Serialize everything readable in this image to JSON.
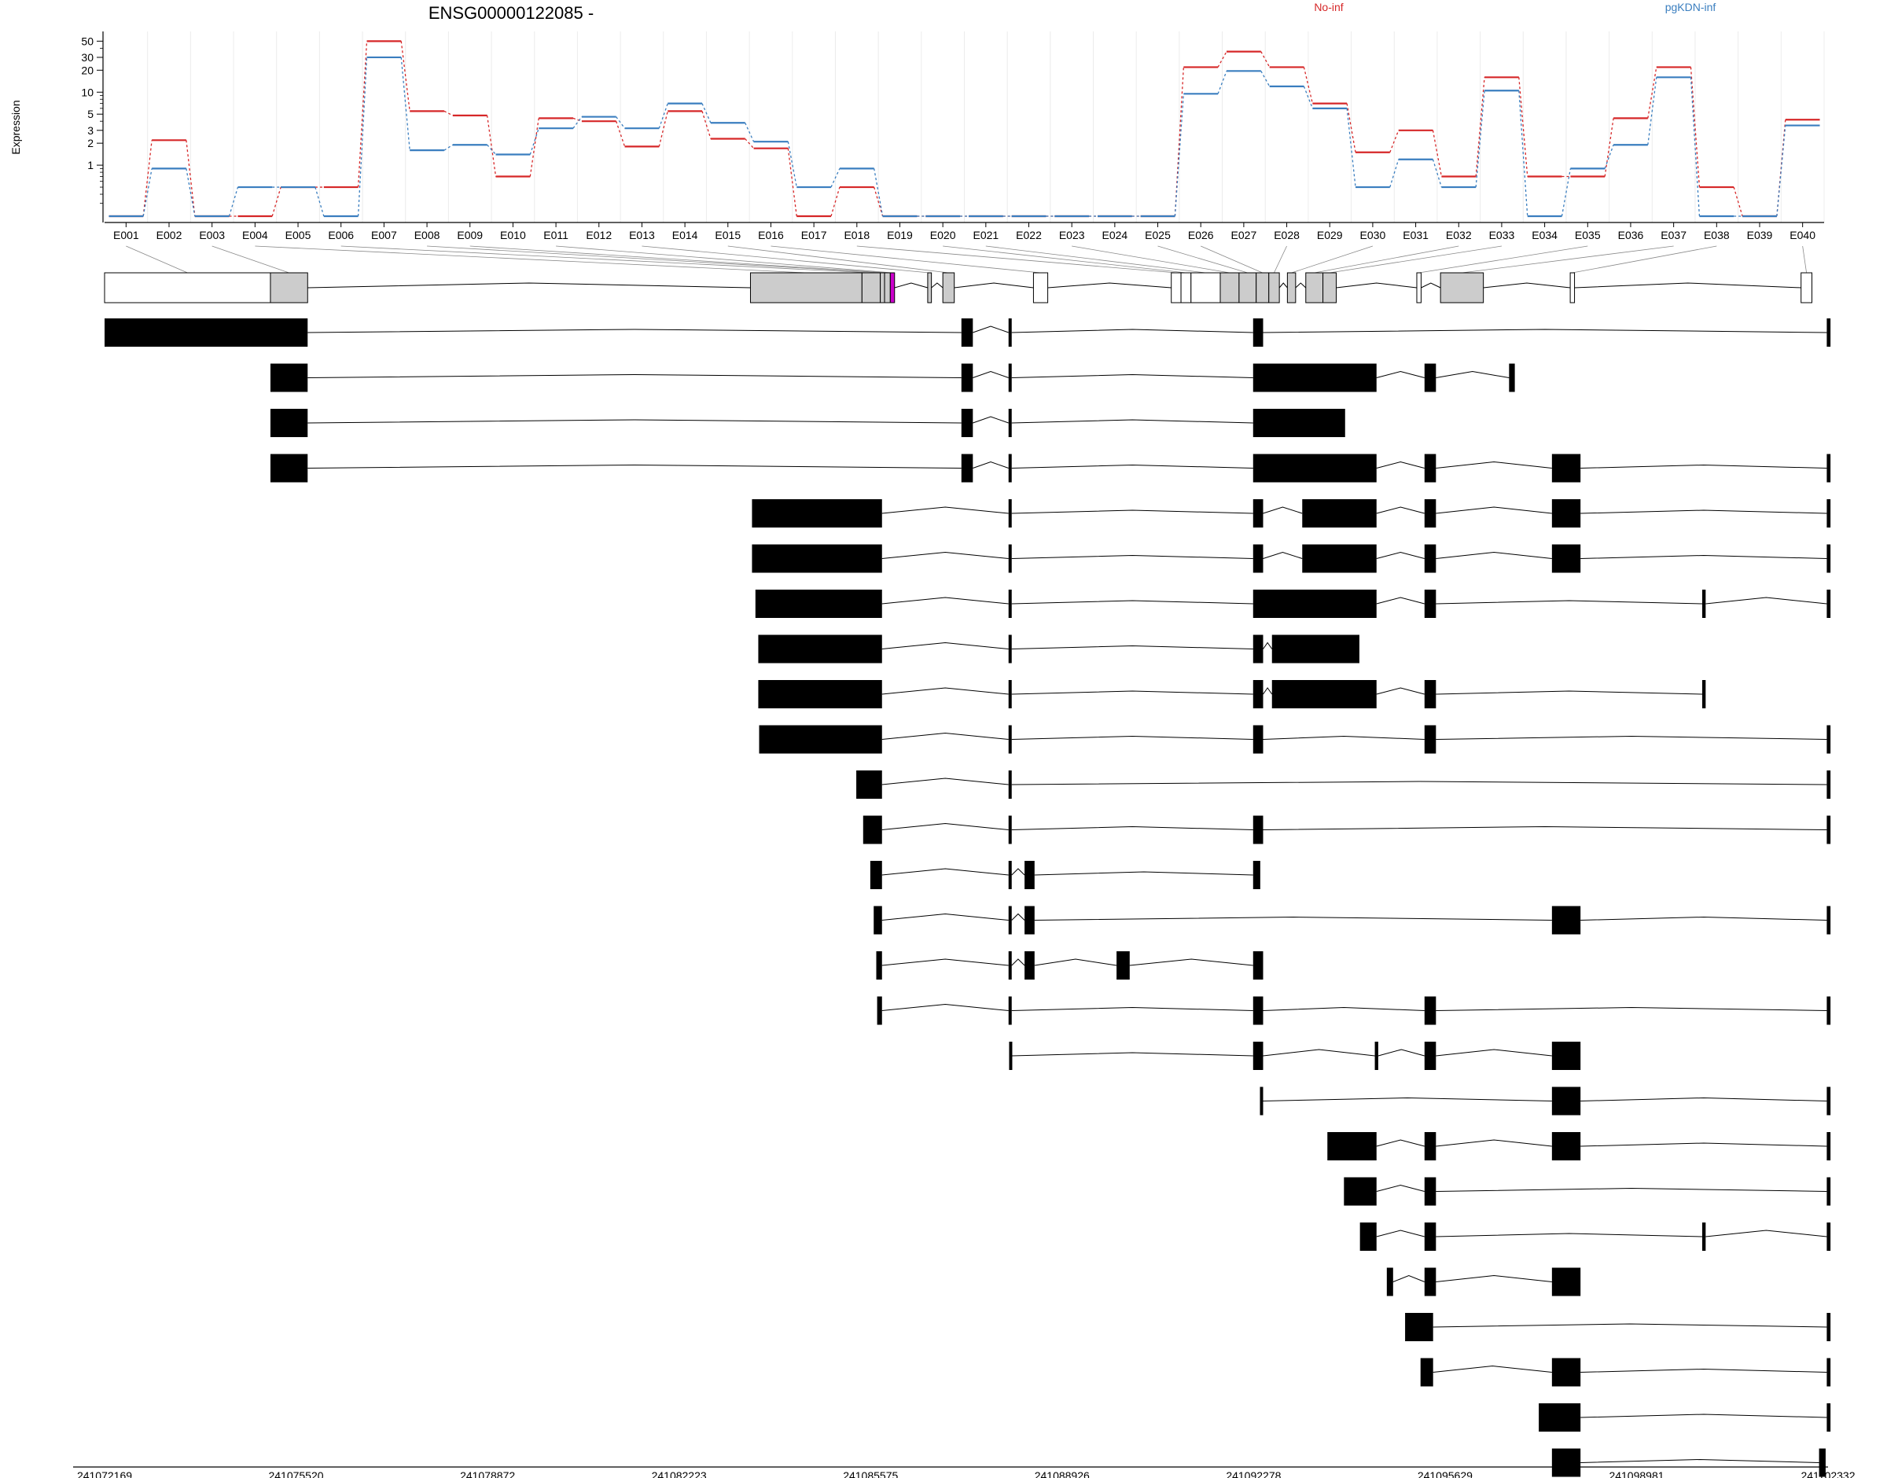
{
  "title": "ENSG00000122085 -",
  "legend": [
    {
      "name": "No-inf",
      "color": "#d62728"
    },
    {
      "name": "pgKDN-inf",
      "color": "#3a7ebf"
    }
  ],
  "colors": {
    "exon_gray": "#cccccc",
    "exon_black": "#000000",
    "highlight": "#cc00cc",
    "line": "#000000"
  },
  "chart_data": {
    "type": "line",
    "title": "ENSG00000122085 -",
    "ylabel": "Expression",
    "xlabel": "",
    "yscale": "log",
    "yticks": [
      1,
      2,
      3,
      5,
      10,
      20,
      30,
      50
    ],
    "grid": true,
    "legend_position": "top-right",
    "categories": [
      "E001",
      "E002",
      "E003",
      "E004",
      "E005",
      "E006",
      "E007",
      "E008",
      "E009",
      "E010",
      "E011",
      "E012",
      "E013",
      "E014",
      "E015",
      "E016",
      "E017",
      "E018",
      "E019",
      "E020",
      "E021",
      "E022",
      "E023",
      "E024",
      "E025",
      "E026",
      "E027",
      "E028",
      "E029",
      "E030",
      "E031",
      "E032",
      "E033",
      "E034",
      "E035",
      "E036",
      "E037",
      "E038",
      "E039",
      "E040"
    ],
    "series": [
      {
        "name": "No-inf",
        "values": [
          0.2,
          2.2,
          0.2,
          0.2,
          0.5,
          0.5,
          50,
          5.5,
          4.8,
          0.7,
          4.4,
          4.0,
          1.8,
          5.5,
          2.3,
          1.7,
          0.2,
          0.5,
          0.2,
          0.2,
          0.2,
          0.2,
          0.2,
          0.2,
          0.2,
          22,
          36,
          22,
          7,
          1.5,
          3,
          0.7,
          16,
          0.7,
          0.7,
          4.4,
          22,
          0.5,
          0.2,
          4.2
        ]
      },
      {
        "name": "pgKDN-inf",
        "values": [
          0.2,
          0.9,
          0.2,
          0.5,
          0.5,
          0.2,
          30,
          1.6,
          1.9,
          1.4,
          3.2,
          4.6,
          3.2,
          7,
          3.8,
          2.1,
          0.5,
          0.9,
          0.2,
          0.2,
          0.2,
          0.2,
          0.2,
          0.2,
          0.2,
          9.5,
          19.5,
          12,
          6,
          0.5,
          1.2,
          0.5,
          10.5,
          0.2,
          0.9,
          1.9,
          16,
          0.2,
          0.2,
          3.5
        ]
      }
    ],
    "genomic_axis": {
      "ticks": [
        "241072169",
        "241075520",
        "241078872",
        "241082223",
        "241085575",
        "241088926",
        "241092278",
        "241095629",
        "241098981",
        "241102332"
      ]
    },
    "gene_model": {
      "exons": [
        {
          "start": 241072169,
          "end": 241075072,
          "fill": "white"
        },
        {
          "start": 241075072,
          "end": 241075723,
          "fill": "gray"
        },
        {
          "start": 241083473,
          "end": 241085425,
          "fill": "gray"
        },
        {
          "start": 241085425,
          "end": 241085745,
          "fill": "gray"
        },
        {
          "start": 241085745,
          "end": 241085820,
          "fill": "gray"
        },
        {
          "start": 241085820,
          "end": 241085920,
          "fill": "gray"
        },
        {
          "start": 241085920,
          "end": 241085995,
          "fill": "highlight"
        },
        {
          "start": 241086575,
          "end": 241086640,
          "fill": "gray"
        },
        {
          "start": 241086840,
          "end": 241087040,
          "fill": "gray"
        },
        {
          "start": 241088426,
          "end": 241088676,
          "fill": "white"
        },
        {
          "start": 241090838,
          "end": 241091008,
          "fill": "white"
        },
        {
          "start": 241091008,
          "end": 241091183,
          "fill": "white"
        },
        {
          "start": 241091183,
          "end": 241091695,
          "fill": "white"
        },
        {
          "start": 241091695,
          "end": 241092024,
          "fill": "gray"
        },
        {
          "start": 241092024,
          "end": 241092324,
          "fill": "gray"
        },
        {
          "start": 241092324,
          "end": 241092545,
          "fill": "gray"
        },
        {
          "start": 241092545,
          "end": 241092729,
          "fill": "gray"
        },
        {
          "start": 241092870,
          "end": 241093014,
          "fill": "gray"
        },
        {
          "start": 241093192,
          "end": 241093492,
          "fill": "gray"
        },
        {
          "start": 241093492,
          "end": 241093725,
          "fill": "gray"
        },
        {
          "start": 241095135,
          "end": 241095210,
          "fill": "white"
        },
        {
          "start": 241095550,
          "end": 241096300,
          "fill": "gray"
        },
        {
          "start": 241097820,
          "end": 241097895,
          "fill": "white"
        },
        {
          "start": 241101860,
          "end": 241102050,
          "fill": "white"
        }
      ]
    },
    "transcripts": [
      [
        [
          241072169,
          241075723
        ],
        [
          241087165,
          241087365
        ],
        [
          241087990,
          241088045
        ],
        [
          241092270,
          241092445
        ],
        [
          241102310,
          241102375
        ]
      ],
      [
        [
          241075072,
          241075723
        ],
        [
          241087165,
          241087365
        ],
        [
          241087990,
          241088045
        ],
        [
          241092270,
          241094430
        ],
        [
          241095270,
          241095470
        ],
        [
          241096750,
          241096850
        ]
      ],
      [
        [
          241075072,
          241075723
        ],
        [
          241087165,
          241087365
        ],
        [
          241087990,
          241088045
        ],
        [
          241092270,
          241093880
        ]
      ],
      [
        [
          241075072,
          241075723
        ],
        [
          241087165,
          241087365
        ],
        [
          241087990,
          241088045
        ],
        [
          241092270,
          241094430
        ],
        [
          241095270,
          241095470
        ],
        [
          241097500,
          241098000
        ],
        [
          241102310,
          241102375
        ]
      ],
      [
        [
          241083500,
          241085775
        ],
        [
          241087990,
          241088045
        ],
        [
          241092270,
          241092445
        ],
        [
          241093130,
          241094430
        ],
        [
          241095270,
          241095470
        ],
        [
          241097500,
          241098000
        ],
        [
          241102310,
          241102375
        ]
      ],
      [
        [
          241083500,
          241085775
        ],
        [
          241087990,
          241088045
        ],
        [
          241092270,
          241092445
        ],
        [
          241093130,
          241094430
        ],
        [
          241095270,
          241095470
        ],
        [
          241097500,
          241098000
        ],
        [
          241102310,
          241102375
        ]
      ],
      [
        [
          241083560,
          241085775
        ],
        [
          241087990,
          241088045
        ],
        [
          241092270,
          241094430
        ],
        [
          241095270,
          241095470
        ],
        [
          241100130,
          241100190
        ],
        [
          241102310,
          241102375
        ]
      ],
      [
        [
          241083610,
          241085775
        ],
        [
          241087990,
          241088045
        ],
        [
          241092270,
          241092445
        ],
        [
          241092600,
          241094130
        ]
      ],
      [
        [
          241083610,
          241085775
        ],
        [
          241087990,
          241088045
        ],
        [
          241092270,
          241092445
        ],
        [
          241092600,
          241094430
        ],
        [
          241095270,
          241095470
        ],
        [
          241100130,
          241100190
        ]
      ],
      [
        [
          241083625,
          241085775
        ],
        [
          241087990,
          241088045
        ],
        [
          241092270,
          241092445
        ],
        [
          241095270,
          241095470
        ],
        [
          241102310,
          241102375
        ]
      ],
      [
        [
          241085325,
          241085775
        ],
        [
          241087990,
          241088045
        ],
        [
          241102310,
          241102375
        ]
      ],
      [
        [
          241085445,
          241085775
        ],
        [
          241087990,
          241088045
        ],
        [
          241092270,
          241092445
        ],
        [
          241102310,
          241102375
        ]
      ],
      [
        [
          241085570,
          241085775
        ],
        [
          241087990,
          241088045
        ],
        [
          241088270,
          241088445
        ],
        [
          241092270,
          241092395
        ]
      ],
      [
        [
          241085630,
          241085775
        ],
        [
          241087990,
          241088045
        ],
        [
          241088270,
          241088445
        ],
        [
          241097500,
          241098000
        ],
        [
          241102310,
          241102375
        ]
      ],
      [
        [
          241085675,
          241085775
        ],
        [
          241087990,
          241088045
        ],
        [
          241088270,
          241088445
        ],
        [
          241089880,
          241090110
        ],
        [
          241092270,
          241092445
        ]
      ],
      [
        [
          241085690,
          241085775
        ],
        [
          241087990,
          241088045
        ],
        [
          241092270,
          241092445
        ],
        [
          241095270,
          241095470
        ],
        [
          241102310,
          241102375
        ]
      ],
      [
        [
          241088000,
          241088045
        ],
        [
          241092270,
          241092445
        ],
        [
          241094400,
          241094460
        ],
        [
          241095270,
          241095470
        ],
        [
          241097500,
          241098000
        ]
      ],
      [
        [
          241092390,
          241092445
        ],
        [
          241097500,
          241098000
        ],
        [
          241102310,
          241102375
        ]
      ],
      [
        [
          241093570,
          241094430
        ],
        [
          241095270,
          241095470
        ],
        [
          241097500,
          241098000
        ],
        [
          241102310,
          241102375
        ]
      ],
      [
        [
          241093860,
          241094430
        ],
        [
          241095270,
          241095470
        ],
        [
          241102310,
          241102375
        ]
      ],
      [
        [
          241094140,
          241094430
        ],
        [
          241095270,
          241095470
        ],
        [
          241100130,
          241100190
        ],
        [
          241102310,
          241102375
        ]
      ],
      [
        [
          241094610,
          241094720
        ],
        [
          241095270,
          241095470
        ],
        [
          241097500,
          241098000
        ]
      ],
      [
        [
          241094930,
          241095420
        ],
        [
          241102310,
          241102375
        ]
      ],
      [
        [
          241095200,
          241095420
        ],
        [
          241097500,
          241098000
        ],
        [
          241102310,
          241102375
        ]
      ],
      [
        [
          241097270,
          241098000
        ],
        [
          241102310,
          241102375
        ]
      ],
      [
        [
          241097500,
          241098000
        ],
        [
          241102175,
          241102290
        ]
      ]
    ]
  }
}
